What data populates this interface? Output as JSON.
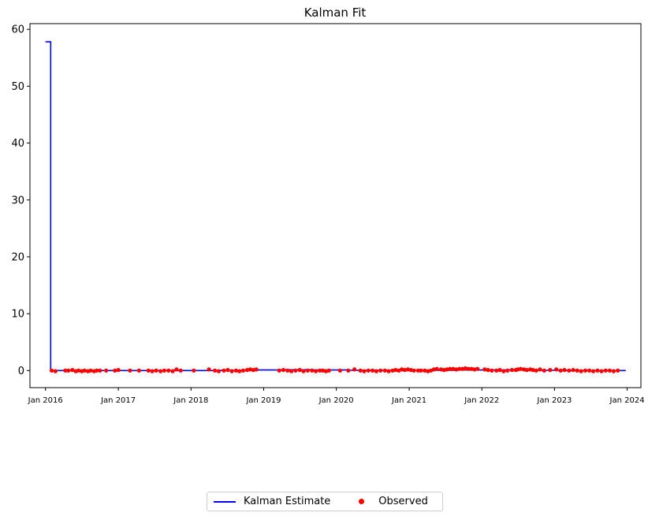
{
  "chart_data": {
    "type": "line",
    "title": "Kalman Fit",
    "xlabel": "",
    "ylabel": "",
    "xlim": [
      "2015-10-15",
      "2024-03-10"
    ],
    "ylim": [
      -3,
      61
    ],
    "x_ticks": [
      {
        "date": "2016-01-01",
        "label": "Jan 2016"
      },
      {
        "date": "2017-01-01",
        "label": "Jan 2017"
      },
      {
        "date": "2018-01-01",
        "label": "Jan 2018"
      },
      {
        "date": "2019-01-01",
        "label": "Jan 2019"
      },
      {
        "date": "2020-01-01",
        "label": "Jan 2020"
      },
      {
        "date": "2021-01-01",
        "label": "Jan 2021"
      },
      {
        "date": "2022-01-01",
        "label": "Jan 2022"
      },
      {
        "date": "2023-01-01",
        "label": "Jan 2023"
      },
      {
        "date": "2024-01-01",
        "label": "Jan 2024"
      }
    ],
    "y_ticks": [
      0,
      10,
      20,
      30,
      40,
      50,
      60
    ],
    "grid": false,
    "legend": {
      "placement": "bottom-center",
      "ncol": 2
    },
    "series": [
      {
        "name": "Kalman Estimate",
        "kind": "line",
        "color": "#0000ff",
        "step": true,
        "x": [
          "2016-01-01",
          "2016-01-25",
          "2016-01-27",
          "2016-06-01",
          "2016-12-01",
          "2017-06-01",
          "2017-12-01",
          "2018-06-01",
          "2018-12-01",
          "2019-03-15",
          "2019-09-01",
          "2020-03-01",
          "2020-09-01",
          "2021-03-01",
          "2021-09-01",
          "2022-03-01",
          "2022-09-01",
          "2023-03-01",
          "2023-09-01",
          "2023-12-25"
        ],
        "y": [
          57.8,
          57.8,
          0.0,
          0.0,
          0.0,
          0.0,
          0.0,
          0.05,
          0.1,
          0.15,
          0.1,
          0.05,
          0.05,
          0.05,
          0.1,
          0.1,
          0.05,
          0.0,
          0.0,
          0.0
        ]
      },
      {
        "name": "Observed",
        "kind": "scatter",
        "color": "#ff0000",
        "x": [
          "2016-02-01",
          "2016-02-20",
          "2016-04-10",
          "2016-04-25",
          "2016-05-15",
          "2016-06-01",
          "2016-06-15",
          "2016-07-01",
          "2016-07-15",
          "2016-08-01",
          "2016-08-15",
          "2016-09-01",
          "2016-09-15",
          "2016-10-01",
          "2016-11-01",
          "2016-12-15",
          "2017-01-01",
          "2017-03-01",
          "2017-04-15",
          "2017-06-01",
          "2017-06-20",
          "2017-07-10",
          "2017-08-01",
          "2017-08-20",
          "2017-09-10",
          "2017-10-01",
          "2017-10-20",
          "2017-11-10",
          "2018-01-15",
          "2018-04-01",
          "2018-05-01",
          "2018-05-20",
          "2018-06-15",
          "2018-07-05",
          "2018-07-25",
          "2018-08-15",
          "2018-09-01",
          "2018-09-20",
          "2018-10-10",
          "2018-10-25",
          "2018-11-10",
          "2018-11-25",
          "2019-03-20",
          "2019-04-10",
          "2019-05-01",
          "2019-05-20",
          "2019-06-10",
          "2019-07-01",
          "2019-07-20",
          "2019-08-10",
          "2019-09-01",
          "2019-09-20",
          "2019-10-10",
          "2019-10-25",
          "2019-11-10",
          "2019-11-25",
          "2020-01-20",
          "2020-03-01",
          "2020-04-01",
          "2020-05-01",
          "2020-05-20",
          "2020-06-10",
          "2020-07-01",
          "2020-07-20",
          "2020-08-10",
          "2020-09-01",
          "2020-09-20",
          "2020-10-10",
          "2020-10-25",
          "2020-11-10",
          "2020-11-25",
          "2020-12-10",
          "2020-12-25",
          "2021-01-10",
          "2021-01-25",
          "2021-02-15",
          "2021-03-01",
          "2021-03-20",
          "2021-04-05",
          "2021-04-20",
          "2021-05-05",
          "2021-05-20",
          "2021-06-10",
          "2021-06-25",
          "2021-07-10",
          "2021-07-25",
          "2021-08-10",
          "2021-08-25",
          "2021-09-10",
          "2021-09-25",
          "2021-10-10",
          "2021-10-25",
          "2021-11-10",
          "2021-11-25",
          "2021-12-10",
          "2022-01-15",
          "2022-02-01",
          "2022-02-20",
          "2022-03-15",
          "2022-04-01",
          "2022-04-20",
          "2022-05-10",
          "2022-06-01",
          "2022-06-20",
          "2022-07-01",
          "2022-07-15",
          "2022-08-01",
          "2022-08-15",
          "2022-09-01",
          "2022-09-15",
          "2022-10-01",
          "2022-10-20",
          "2022-11-10",
          "2022-12-10",
          "2023-01-10",
          "2023-02-01",
          "2023-02-20",
          "2023-03-15",
          "2023-04-05",
          "2023-04-25",
          "2023-05-15",
          "2023-06-05",
          "2023-06-25",
          "2023-07-15",
          "2023-08-05",
          "2023-08-25",
          "2023-09-15",
          "2023-10-05",
          "2023-10-25",
          "2023-11-15"
        ],
        "y": [
          0.0,
          -0.1,
          0.0,
          0.0,
          0.1,
          -0.1,
          0.0,
          -0.1,
          0.0,
          -0.1,
          0.0,
          -0.1,
          0.0,
          0.0,
          0.0,
          0.0,
          0.1,
          0.0,
          0.0,
          0.0,
          -0.1,
          0.0,
          -0.1,
          0.0,
          0.0,
          -0.1,
          0.2,
          0.0,
          0.0,
          0.2,
          0.0,
          -0.1,
          0.0,
          0.1,
          -0.1,
          0.0,
          -0.1,
          0.0,
          0.1,
          0.2,
          0.1,
          0.2,
          0.0,
          0.1,
          0.0,
          -0.1,
          0.0,
          0.1,
          -0.1,
          0.0,
          0.0,
          -0.1,
          0.0,
          0.0,
          -0.1,
          0.0,
          0.0,
          0.0,
          0.2,
          0.0,
          -0.1,
          0.0,
          0.0,
          -0.1,
          0.0,
          0.0,
          -0.1,
          0.0,
          0.1,
          0.0,
          0.2,
          0.1,
          0.2,
          0.1,
          0.0,
          0.0,
          0.0,
          0.0,
          -0.1,
          0.0,
          0.2,
          0.3,
          0.2,
          0.1,
          0.2,
          0.3,
          0.3,
          0.2,
          0.3,
          0.3,
          0.4,
          0.3,
          0.3,
          0.2,
          0.3,
          0.2,
          0.1,
          0.0,
          0.0,
          0.1,
          -0.1,
          0.0,
          0.1,
          0.1,
          0.2,
          0.3,
          0.2,
          0.1,
          0.2,
          0.1,
          0.0,
          0.2,
          0.0,
          0.1,
          0.2,
          0.0,
          0.1,
          0.0,
          0.1,
          0.0,
          -0.1,
          0.0,
          0.0,
          -0.1,
          0.0,
          -0.1,
          0.0,
          0.0,
          -0.1,
          0.0
        ]
      }
    ]
  }
}
